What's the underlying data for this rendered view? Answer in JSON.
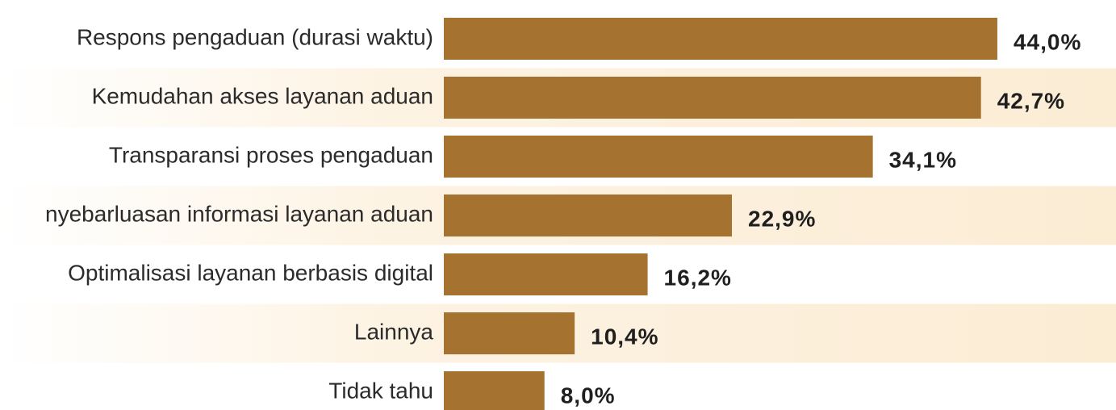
{
  "chart_data": {
    "type": "barh",
    "categories": [
      "Respons pengaduan (durasi waktu)",
      "Kemudahan akses layanan aduan",
      "Transparansi proses pengaduan",
      "nyebarluasan informasi layanan aduan",
      "Optimalisasi layanan berbasis digital",
      "Lainnya",
      "Tidak tahu"
    ],
    "values": [
      44.0,
      42.7,
      34.1,
      22.9,
      16.2,
      10.4,
      8.0
    ],
    "value_labels": [
      "44,0%",
      "42,7%",
      "34,1%",
      "22,9%",
      "16,2%",
      "10,4%",
      "8,0%"
    ],
    "color": "#a5732f"
  }
}
